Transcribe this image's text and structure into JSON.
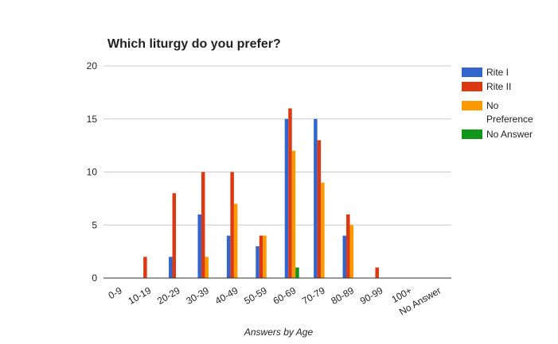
{
  "chart_data": {
    "type": "bar",
    "title": "Which liturgy do you prefer?",
    "x_label": "Answers by Age",
    "categories": [
      "0-9",
      "10-19",
      "20-29",
      "30-39",
      "40-49",
      "50-59",
      "60-69",
      "70-79",
      "80-89",
      "90-99",
      "100+",
      "No Answer"
    ],
    "series": [
      {
        "name": "Rite I",
        "color": "#3366cc",
        "values": [
          0,
          0,
          2,
          6,
          4,
          3,
          15,
          15,
          4,
          0,
          0,
          0
        ]
      },
      {
        "name": "Rite II",
        "color": "#dc3912",
        "values": [
          0,
          2,
          8,
          10,
          10,
          4,
          16,
          13,
          6,
          1,
          0,
          0
        ]
      },
      {
        "name": "No Preference",
        "color": "#ff9900",
        "values": [
          0,
          0,
          0,
          2,
          7,
          4,
          12,
          9,
          5,
          0,
          0,
          0
        ]
      },
      {
        "name": "No Answer",
        "color": "#109618",
        "values": [
          0,
          0,
          0,
          0,
          0,
          0,
          1,
          0,
          0,
          0,
          0,
          0
        ]
      }
    ],
    "ylim": [
      0,
      20
    ],
    "yticks": [
      0,
      5,
      10,
      15,
      20
    ],
    "grid": true,
    "legend": "right"
  }
}
